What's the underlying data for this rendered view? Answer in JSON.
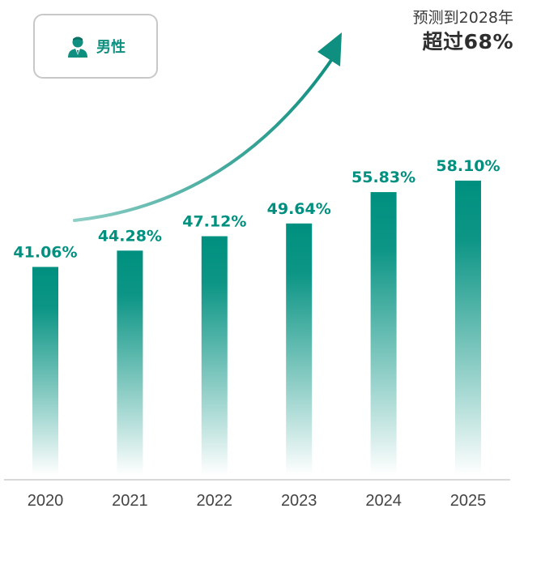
{
  "legend": {
    "label": "男性",
    "icon": "male-user-icon"
  },
  "forecast": {
    "line1": "预测到2028年",
    "line2": "超过68%"
  },
  "colors": {
    "bar_top": "#00907f",
    "bar_bottom": "#ffffff",
    "label": "#00907f",
    "arrow": "#0e8f80",
    "axis": "#d9d9d9",
    "tick": "#444444"
  },
  "chart_data": {
    "type": "bar",
    "title": "",
    "xlabel": "",
    "ylabel": "",
    "series_name": "男性",
    "categories": [
      "2020",
      "2021",
      "2022",
      "2023",
      "2024",
      "2025"
    ],
    "values": [
      41.06,
      44.28,
      47.12,
      49.64,
      55.83,
      58.1
    ],
    "value_labels": [
      "41.06%",
      "44.28%",
      "47.12%",
      "49.64%",
      "55.83%",
      "58.10%"
    ],
    "ylim": [
      0,
      64
    ],
    "grid": false,
    "annotation": "预测到2028年 超过68%"
  }
}
